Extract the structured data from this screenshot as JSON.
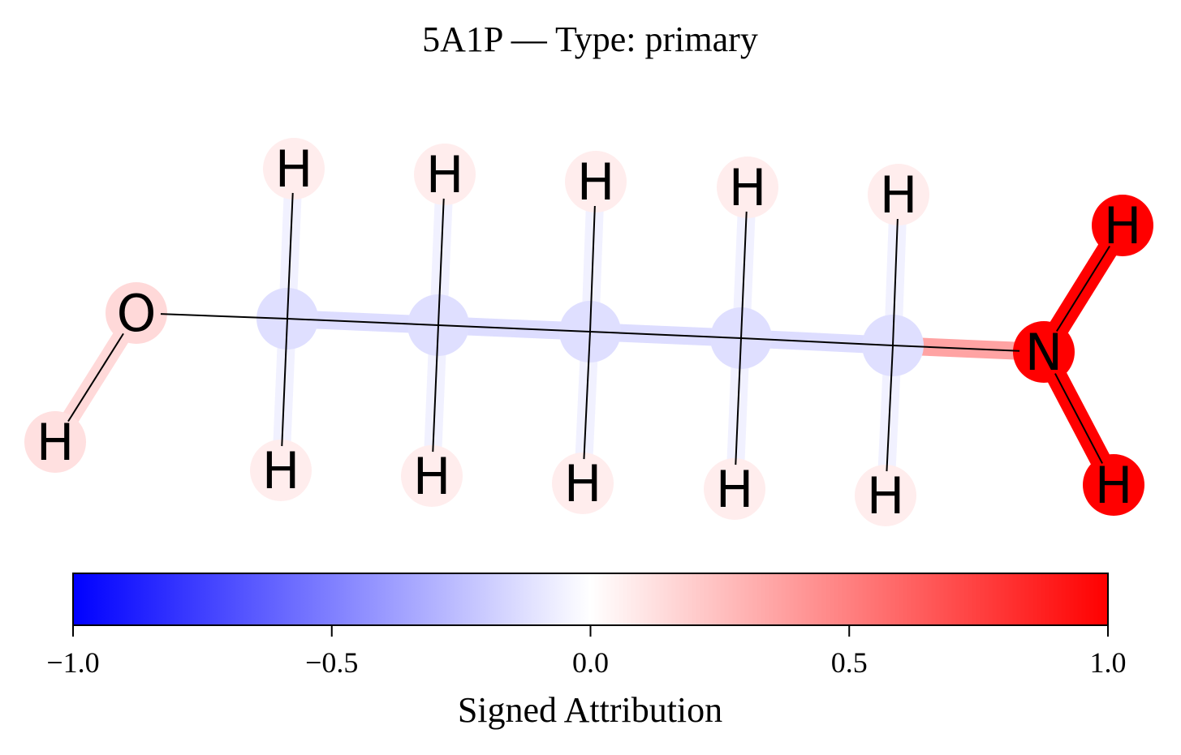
{
  "title": "5A1P — Type: primary",
  "colorbar": {
    "label": "Signed Attribution",
    "range": [
      -1.0,
      1.0
    ],
    "ticks": [
      {
        "value": -1.0,
        "label": "−1.0"
      },
      {
        "value": -0.5,
        "label": "−0.5"
      },
      {
        "value": 0.0,
        "label": "0.0"
      },
      {
        "value": 0.5,
        "label": "0.5"
      },
      {
        "value": 1.0,
        "label": "1.0"
      }
    ],
    "colormap": [
      "#0000ff",
      "#ffffff",
      "#ff0000"
    ]
  },
  "molecule": {
    "atoms": [
      {
        "id": "h_o",
        "element": "H",
        "label": "H",
        "attribution": 0.12
      },
      {
        "id": "o1",
        "element": "O",
        "label": "O",
        "attribution": 0.15
      },
      {
        "id": "c1",
        "element": "C",
        "label": "",
        "attribution": -0.15
      },
      {
        "id": "c2",
        "element": "C",
        "label": "",
        "attribution": -0.15
      },
      {
        "id": "c3",
        "element": "C",
        "label": "",
        "attribution": -0.15
      },
      {
        "id": "c4",
        "element": "C",
        "label": "",
        "attribution": -0.15
      },
      {
        "id": "c5",
        "element": "C",
        "label": "",
        "attribution": -0.15
      },
      {
        "id": "n1",
        "element": "N",
        "label": "N",
        "attribution": 1.0
      },
      {
        "id": "h_n1",
        "element": "H",
        "label": "H",
        "attribution": 1.0
      },
      {
        "id": "h_n2",
        "element": "H",
        "label": "H",
        "attribution": 1.0
      },
      {
        "id": "h_c1t",
        "element": "H",
        "label": "H",
        "attribution": 0.07
      },
      {
        "id": "h_c1b",
        "element": "H",
        "label": "H",
        "attribution": 0.07
      },
      {
        "id": "h_c2t",
        "element": "H",
        "label": "H",
        "attribution": 0.07
      },
      {
        "id": "h_c2b",
        "element": "H",
        "label": "H",
        "attribution": 0.07
      },
      {
        "id": "h_c3t",
        "element": "H",
        "label": "H",
        "attribution": 0.07
      },
      {
        "id": "h_c3b",
        "element": "H",
        "label": "H",
        "attribution": 0.07
      },
      {
        "id": "h_c4t",
        "element": "H",
        "label": "H",
        "attribution": 0.07
      },
      {
        "id": "h_c4b",
        "element": "H",
        "label": "H",
        "attribution": 0.07
      },
      {
        "id": "h_c5t",
        "element": "H",
        "label": "H",
        "attribution": 0.07
      },
      {
        "id": "h_c5b",
        "element": "H",
        "label": "H",
        "attribution": 0.07
      }
    ],
    "bonds": [
      {
        "a": "h_o",
        "b": "o1",
        "attribution": 0.15
      },
      {
        "a": "o1",
        "b": "c1",
        "attribution": 0.0
      },
      {
        "a": "c1",
        "b": "c2",
        "attribution": -0.15
      },
      {
        "a": "c2",
        "b": "c3",
        "attribution": -0.15
      },
      {
        "a": "c3",
        "b": "c4",
        "attribution": -0.15
      },
      {
        "a": "c4",
        "b": "c5",
        "attribution": -0.15
      },
      {
        "a": "c5",
        "b": "n1",
        "attribution": 0.45
      },
      {
        "a": "n1",
        "b": "h_n1",
        "attribution": 1.0
      },
      {
        "a": "n1",
        "b": "h_n2",
        "attribution": 1.0
      },
      {
        "a": "c1",
        "b": "h_c1t",
        "attribution": -0.05
      },
      {
        "a": "c1",
        "b": "h_c1b",
        "attribution": -0.05
      },
      {
        "a": "c2",
        "b": "h_c2t",
        "attribution": -0.05
      },
      {
        "a": "c2",
        "b": "h_c2b",
        "attribution": -0.05
      },
      {
        "a": "c3",
        "b": "h_c3t",
        "attribution": -0.05
      },
      {
        "a": "c3",
        "b": "h_c3b",
        "attribution": -0.05
      },
      {
        "a": "c4",
        "b": "h_c4t",
        "attribution": -0.05
      },
      {
        "a": "c4",
        "b": "h_c4b",
        "attribution": -0.05
      },
      {
        "a": "c5",
        "b": "h_c5t",
        "attribution": -0.05
      },
      {
        "a": "c5",
        "b": "h_c5b",
        "attribution": -0.05
      }
    ]
  }
}
